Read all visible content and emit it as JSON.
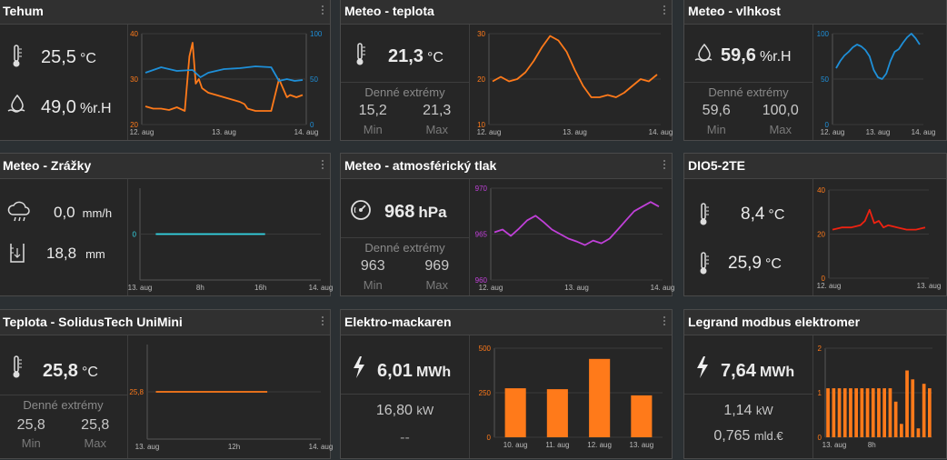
{
  "tiles": {
    "tehum": {
      "title": "Tehum",
      "temperature": "25,5",
      "temp_unit": "°C",
      "humidity": "49,0",
      "hum_unit": "%r.H",
      "chart_data": {
        "type": "line",
        "x_ticks": [
          "12. aug",
          "13. aug",
          "14. aug"
        ],
        "y_left_ticks": [
          "40",
          "30",
          "20"
        ],
        "y_right_ticks": [
          "100",
          "50",
          "0"
        ],
        "ylim_left": [
          20,
          40
        ],
        "ylim_right": [
          0,
          100
        ],
        "series": [
          {
            "color": "#ff7a1a",
            "axis": "left",
            "x": [
              0,
              0.05,
              0.1,
              0.15,
              0.2,
              0.25,
              0.28,
              0.3,
              0.32,
              0.34,
              0.36,
              0.4,
              0.45,
              0.5,
              0.55,
              0.6,
              0.63,
              0.65,
              0.7,
              0.75,
              0.8,
              0.85,
              0.9,
              0.92,
              0.96,
              1.0
            ],
            "y": [
              24,
              23.5,
              23.5,
              23.2,
              23.8,
              23,
              35,
              38,
              29,
              30,
              28,
              27,
              26.5,
              26,
              25.5,
              25,
              24.5,
              23.5,
              23,
              23,
              23,
              30,
              26,
              26.5,
              26,
              26.5
            ]
          },
          {
            "color": "#1e8fd8",
            "axis": "right",
            "x": [
              0,
              0.1,
              0.2,
              0.3,
              0.35,
              0.4,
              0.5,
              0.6,
              0.7,
              0.8,
              0.85,
              0.9,
              0.95,
              1.0
            ],
            "y": [
              57,
              63,
              59,
              60,
              52,
              57,
              61,
              62,
              64,
              63,
              48,
              50,
              48,
              49
            ]
          }
        ]
      }
    },
    "meteo_teplota": {
      "title": "Meteo - teplota",
      "temperature": "21,3",
      "temp_unit": "°C",
      "extremes_title": "Denné extrémy",
      "min": "15,2",
      "max": "21,3",
      "min_label": "Min",
      "max_label": "Max",
      "chart_data": {
        "type": "line",
        "x_ticks": [
          "12. aug",
          "13. aug",
          "14. aug"
        ],
        "y_ticks": [
          "30",
          "20",
          "10"
        ],
        "ylim": [
          10,
          30
        ],
        "series": [
          {
            "color": "#ff7a1a",
            "x": [
              0,
              0.05,
              0.1,
              0.15,
              0.2,
              0.25,
              0.3,
              0.35,
              0.4,
              0.45,
              0.5,
              0.55,
              0.6,
              0.65,
              0.7,
              0.75,
              0.8,
              0.85,
              0.9,
              0.95,
              1.0
            ],
            "y": [
              19.5,
              20.5,
              19.5,
              20,
              21.5,
              24,
              27,
              29.5,
              28.5,
              26,
              22,
              18.5,
              16,
              16,
              16.5,
              16,
              17,
              18.5,
              20,
              19.5,
              21
            ]
          }
        ]
      }
    },
    "meteo_vlhkost": {
      "title": "Meteo - vlhkost",
      "humidity": "59,6",
      "hum_unit": "%r.H",
      "extremes_title": "Denné extrémy",
      "min": "59,6",
      "max": "100,0",
      "min_label": "Min",
      "max_label": "Max",
      "chart_data": {
        "type": "line",
        "x_ticks": [
          "12. aug",
          "13. aug",
          "14. aug"
        ],
        "y_ticks": [
          "100",
          "50",
          "0"
        ],
        "ylim": [
          0,
          100
        ],
        "series": [
          {
            "color": "#1e8fd8",
            "x": [
              0,
              0.05,
              0.1,
              0.15,
              0.2,
              0.25,
              0.3,
              0.35,
              0.4,
              0.45,
              0.5,
              0.55,
              0.6,
              0.65,
              0.7,
              0.75,
              0.8,
              0.85,
              0.9,
              0.95,
              1.0
            ],
            "y": [
              62,
              70,
              76,
              80,
              85,
              88,
              86,
              82,
              75,
              60,
              52,
              50,
              56,
              70,
              80,
              83,
              90,
              96,
              100,
              95,
              88
            ]
          }
        ]
      }
    },
    "meteo_zrazky": {
      "title": "Meteo - Zrážky",
      "rate": "0,0",
      "rate_unit": "mm/h",
      "total": "18,8",
      "total_unit": "mm",
      "chart_data": {
        "type": "line",
        "x_ticks": [
          "13. aug",
          "8h",
          "16h",
          "14. aug"
        ],
        "y_ticks": [
          "0"
        ],
        "ylim": [
          0,
          1
        ],
        "series": [
          {
            "color": "#34d6e6",
            "x": [
              0.07,
              0.7
            ],
            "y": [
              0,
              0
            ]
          }
        ]
      }
    },
    "meteo_tlak": {
      "title": "Meteo - atmosférický tlak",
      "pressure": "968",
      "pressure_unit": "hPa",
      "extremes_title": "Denné extrémy",
      "min": "963",
      "max": "969",
      "min_label": "Min",
      "max_label": "Max",
      "chart_data": {
        "type": "line",
        "x_ticks": [
          "12. aug",
          "13. aug",
          "14. aug"
        ],
        "y_ticks": [
          "970",
          "965",
          "960"
        ],
        "ylim": [
          960,
          970
        ],
        "series": [
          {
            "color": "#c040d8",
            "x": [
              0,
              0.05,
              0.1,
              0.15,
              0.2,
              0.25,
              0.3,
              0.35,
              0.4,
              0.45,
              0.5,
              0.55,
              0.6,
              0.65,
              0.7,
              0.75,
              0.8,
              0.85,
              0.9,
              0.95,
              1.0
            ],
            "y": [
              965.2,
              965.5,
              964.8,
              965.6,
              966.5,
              967,
              966.3,
              965.5,
              965,
              964.5,
              964.2,
              963.8,
              964.3,
              964,
              964.5,
              965.5,
              966.5,
              967.5,
              968,
              968.5,
              968
            ]
          }
        ]
      }
    },
    "dio5": {
      "title": "DIO5-2TE",
      "temp1": "8,4",
      "temp2": "25,9",
      "temp_unit": "°C",
      "chart_data": {
        "type": "line",
        "x_ticks": [
          "12. aug",
          "13. aug"
        ],
        "y_ticks": [
          "40",
          "20",
          "0"
        ],
        "ylim": [
          0,
          40
        ],
        "series": [
          {
            "color": "#ee2211",
            "x": [
              0,
              0.1,
              0.2,
              0.3,
              0.35,
              0.4,
              0.45,
              0.5,
              0.55,
              0.6,
              0.7,
              0.8,
              0.9,
              1.0
            ],
            "y": [
              22,
              23,
              23,
              24,
              26,
              31,
              25,
              26,
              23,
              24,
              23,
              22,
              22,
              23
            ]
          }
        ]
      }
    },
    "teplota_unimini": {
      "title": "Teplota - SolidusTech UniMini",
      "temperature": "25,8",
      "temp_unit": "°C",
      "extremes_title": "Denné extrémy",
      "min": "25,8",
      "max": "25,8",
      "min_label": "Min",
      "max_label": "Max",
      "chart_data": {
        "type": "line",
        "x_ticks": [
          "13. aug",
          "12h",
          "14. aug"
        ],
        "y_ticks": [
          "25,8"
        ],
        "series": [
          {
            "color": "#ff7a1a",
            "x": [
              0.03,
              0.7
            ],
            "y": [
              25.8,
              25.8
            ]
          }
        ]
      }
    },
    "elektro": {
      "title": "Elektro-mackaren",
      "energy": "6,01",
      "energy_unit": "MWh",
      "power": "16,80",
      "power_unit": "kW",
      "extra": "--",
      "chart_data": {
        "type": "bar",
        "categories": [
          "10. aug",
          "11. aug",
          "12. aug",
          "13. aug"
        ],
        "values": [
          275,
          270,
          440,
          235
        ],
        "y_ticks": [
          "500",
          "250",
          "0"
        ],
        "ylim": [
          0,
          500
        ]
      }
    },
    "legrand": {
      "title": "Legrand modbus elektromer",
      "energy": "7,64",
      "energy_unit": "MWh",
      "power": "1,14",
      "power_unit": "kW",
      "cost": "0,765",
      "cost_unit": "mld.€",
      "chart_data": {
        "type": "bar",
        "x_ticks": [
          "13. aug",
          "8h"
        ],
        "y_ticks": [
          "2",
          "1",
          "0"
        ],
        "ylim": [
          0,
          2
        ],
        "values": [
          1.1,
          1.1,
          1.1,
          1.1,
          1.1,
          1.1,
          1.1,
          1.1,
          1.1,
          1.1,
          1.1,
          1.1,
          0.8,
          0.3,
          1.5,
          1.3,
          0.2,
          1.2,
          1.1
        ]
      }
    }
  },
  "colors": {
    "orange": "#ff7a1a",
    "blue": "#1e8fd8",
    "cyan": "#34d6e6",
    "magenta": "#c040d8",
    "red": "#ee2211"
  }
}
